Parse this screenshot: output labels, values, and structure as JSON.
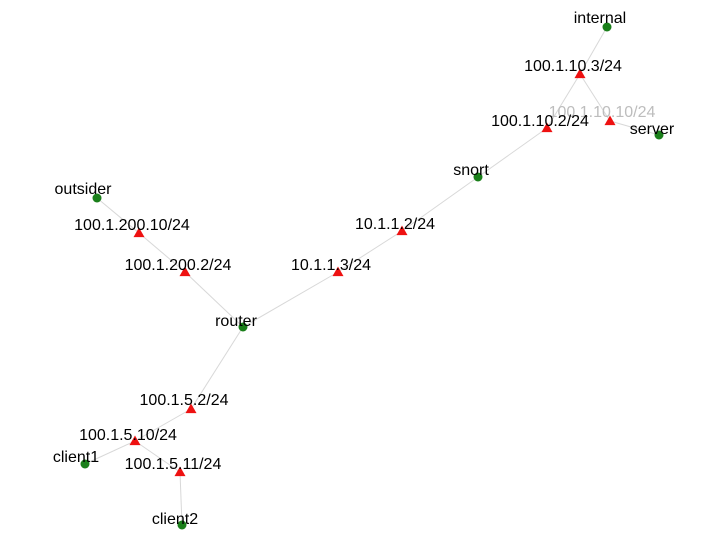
{
  "colors": {
    "host": "#1a7f1a",
    "interface": "#ee1111",
    "edge": "#d8d8d8",
    "label": "#000000"
  },
  "hosts": [
    {
      "id": "internal",
      "label": "internal"
    },
    {
      "id": "server",
      "label": "server"
    },
    {
      "id": "snort",
      "label": "snort"
    },
    {
      "id": "outsider",
      "label": "outsider"
    },
    {
      "id": "router",
      "label": "router"
    },
    {
      "id": "client1",
      "label": "client1"
    },
    {
      "id": "client2",
      "label": "client2"
    }
  ],
  "interfaces": [
    {
      "id": "if-100-1-10-3",
      "label": "100.1.10.3/24"
    },
    {
      "id": "if-100-1-10-10",
      "label": "100.1.10.10/24"
    },
    {
      "id": "if-100-1-10-2",
      "label": "100.1.10.2/24"
    },
    {
      "id": "if-10-1-1-2",
      "label": "10.1.1.2/24"
    },
    {
      "id": "if-10-1-1-3",
      "label": "10.1.1.3/24"
    },
    {
      "id": "if-100-1-200-10",
      "label": "100.1.200.10/24"
    },
    {
      "id": "if-100-1-200-2",
      "label": "100.1.200.2/24"
    },
    {
      "id": "if-100-1-5-2",
      "label": "100.1.5.2/24"
    },
    {
      "id": "if-100-1-5-10",
      "label": "100.1.5.10/24"
    },
    {
      "id": "if-100-1-5-11",
      "label": "100.1.5.11/24"
    }
  ],
  "edges": [
    [
      "internal",
      "if-100-1-10-3"
    ],
    [
      "if-100-1-10-3",
      "if-100-1-10-10"
    ],
    [
      "if-100-1-10-3",
      "if-100-1-10-2"
    ],
    [
      "if-100-1-10-10",
      "server"
    ],
    [
      "if-100-1-10-2",
      "snort"
    ],
    [
      "snort",
      "if-10-1-1-2"
    ],
    [
      "if-10-1-1-2",
      "if-10-1-1-3"
    ],
    [
      "if-10-1-1-3",
      "router"
    ],
    [
      "outsider",
      "if-100-1-200-10"
    ],
    [
      "if-100-1-200-10",
      "if-100-1-200-2"
    ],
    [
      "if-100-1-200-2",
      "router"
    ],
    [
      "router",
      "if-100-1-5-2"
    ],
    [
      "if-100-1-5-2",
      "if-100-1-5-10"
    ],
    [
      "if-100-1-5-10",
      "client1"
    ],
    [
      "if-100-1-5-10",
      "if-100-1-5-11"
    ],
    [
      "if-100-1-5-11",
      "client2"
    ]
  ]
}
